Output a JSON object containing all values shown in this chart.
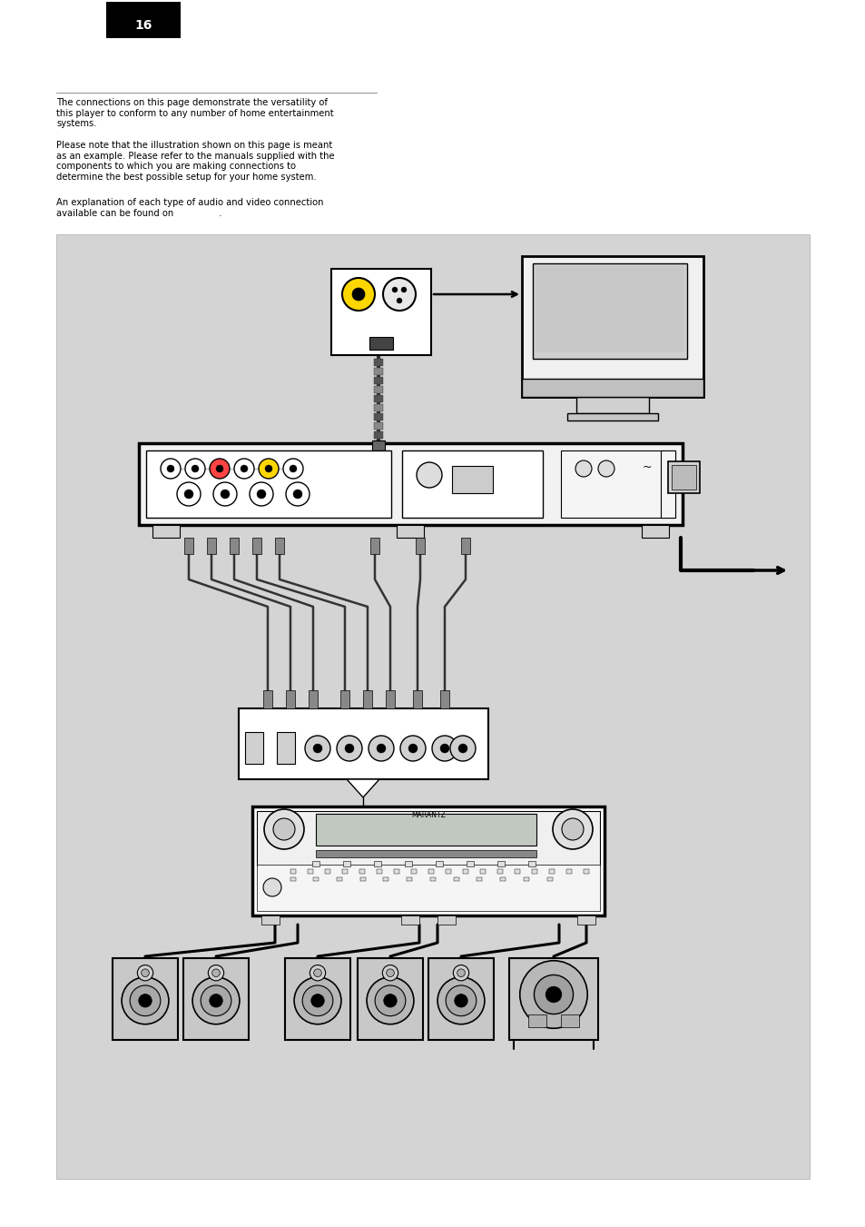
{
  "page_bg": "#ffffff",
  "diagram_bg": "#d4d4d4",
  "text_color": "#000000",
  "page_number_bg": "#000000",
  "page_number_text": "16",
  "page_number_color": "#ffffff",
  "paragraph1": "The connections on this page demonstrate the versatility of\nthis player to conform to any number of home entertainment\nsystems.",
  "paragraph2": "Please note that the illustration shown on this page is meant\nas an example. Please refer to the manuals supplied with the\ncomponents to which you are making connections to\ndetermine the best possible setup for your home system.",
  "paragraph3": "An explanation of each type of audio and video connection\navailable can be found on                .",
  "font_size_text": 7.2,
  "font_size_page": 10
}
